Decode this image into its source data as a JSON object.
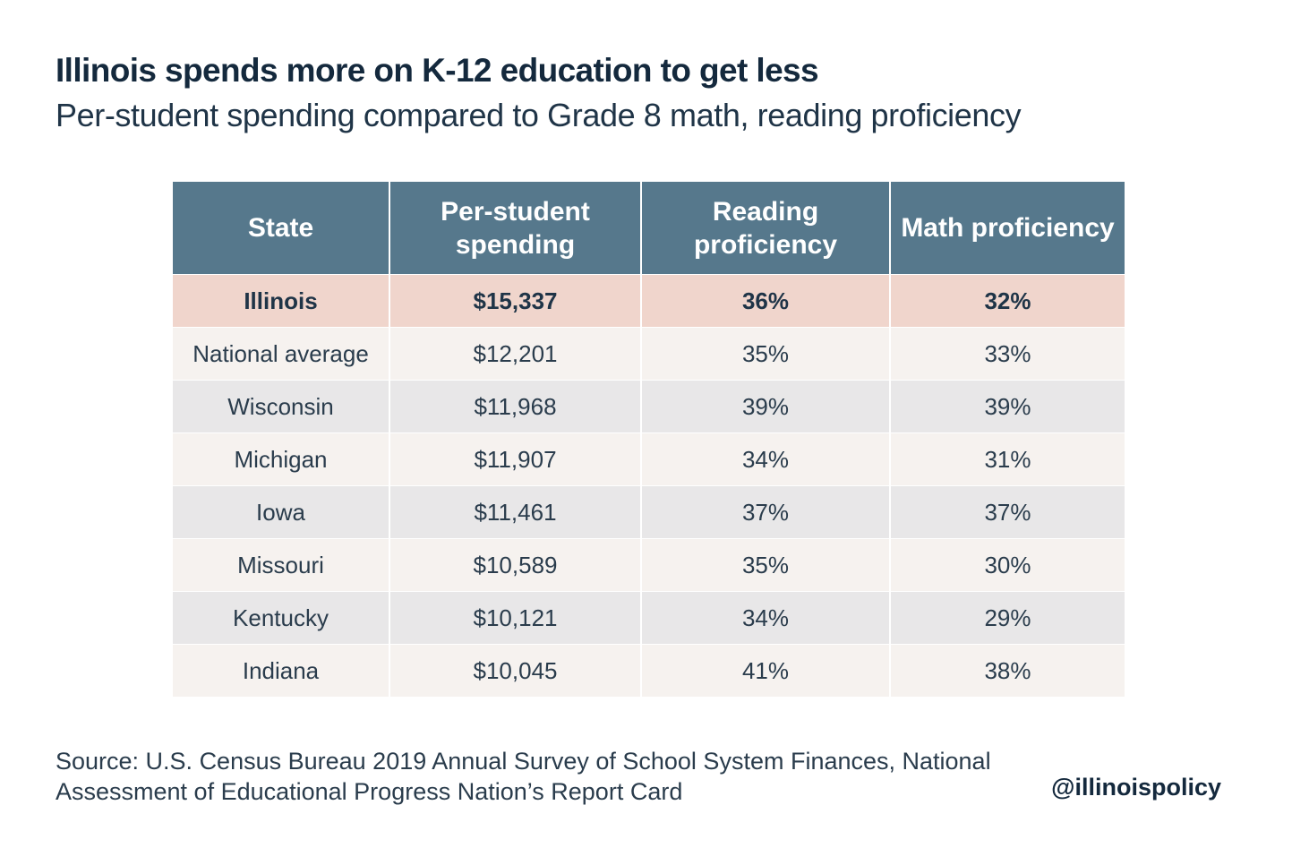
{
  "chart_data": {
    "type": "table",
    "title": "Illinois spends more on K-12 education to get less",
    "subtitle": "Per-student spending compared to Grade 8 math, reading proficiency",
    "columns": [
      "State",
      "Per-student spending",
      "Reading proficiency",
      "Math proficiency"
    ],
    "rows": [
      {
        "state": "Illinois",
        "spending": "$15,337",
        "reading": "36%",
        "math": "32%",
        "highlight": true
      },
      {
        "state": "National average",
        "spending": "$12,201",
        "reading": "35%",
        "math": "33%"
      },
      {
        "state": "Wisconsin",
        "spending": "$11,968",
        "reading": "39%",
        "math": "39%"
      },
      {
        "state": "Michigan",
        "spending": "$11,907",
        "reading": "34%",
        "math": "31%"
      },
      {
        "state": "Iowa",
        "spending": "$11,461",
        "reading": "37%",
        "math": "37%"
      },
      {
        "state": "Missouri",
        "spending": "$10,589",
        "reading": "35%",
        "math": "30%"
      },
      {
        "state": "Kentucky",
        "spending": "$10,121",
        "reading": "34%",
        "math": "29%"
      },
      {
        "state": "Indiana",
        "spending": "$10,045",
        "reading": "41%",
        "math": "38%"
      }
    ],
    "source_lines": [
      "Source: U.S. Census Bureau 2019 Annual Survey of School System Finances, National",
      "Assessment of Educational Progress Nation’s Report Card"
    ],
    "handle": "@illinoispolicy"
  },
  "colors": {
    "title": "#14293d",
    "header_bg": "#56788c",
    "header_text": "#ffffff",
    "highlight_row": "#f0d5cc",
    "row_light": "#f6f2ef",
    "row_gray": "#e8e7e8",
    "body_text": "#2a3c4c"
  }
}
